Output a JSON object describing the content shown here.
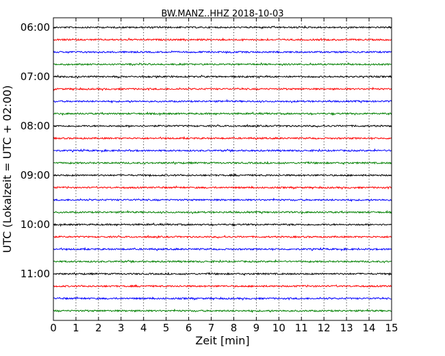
{
  "chart_data": {
    "type": "line",
    "title": "BW.MANZ..HHZ 2018-10-03",
    "xlabel": "Zeit  [min]",
    "ylabel": "UTC (Lokalzeit = UTC + 02:00)",
    "xlim": [
      0,
      15
    ],
    "x_ticks": [
      "0",
      "1",
      "2",
      "3",
      "4",
      "5",
      "6",
      "7",
      "8",
      "9",
      "10",
      "11",
      "12",
      "13",
      "14",
      "15"
    ],
    "y_ticks": [
      "06:00",
      "07:00",
      "08:00",
      "09:00",
      "10:00",
      "11:00"
    ],
    "grid": "vertical dotted at each minute",
    "trace_colors": [
      "#000000",
      "#ff0000",
      "#0000ff",
      "#008000"
    ],
    "traces": [
      {
        "start": "06:00",
        "color": "#000000"
      },
      {
        "start": "06:15",
        "color": "#ff0000"
      },
      {
        "start": "06:30",
        "color": "#0000ff"
      },
      {
        "start": "06:45",
        "color": "#008000"
      },
      {
        "start": "07:00",
        "color": "#000000"
      },
      {
        "start": "07:15",
        "color": "#ff0000"
      },
      {
        "start": "07:30",
        "color": "#0000ff"
      },
      {
        "start": "07:45",
        "color": "#008000"
      },
      {
        "start": "08:00",
        "color": "#000000"
      },
      {
        "start": "08:15",
        "color": "#ff0000"
      },
      {
        "start": "08:30",
        "color": "#0000ff"
      },
      {
        "start": "08:45",
        "color": "#008000"
      },
      {
        "start": "09:00",
        "color": "#000000"
      },
      {
        "start": "09:15",
        "color": "#ff0000"
      },
      {
        "start": "09:30",
        "color": "#0000ff"
      },
      {
        "start": "09:45",
        "color": "#008000"
      },
      {
        "start": "10:00",
        "color": "#000000"
      },
      {
        "start": "10:15",
        "color": "#ff0000"
      },
      {
        "start": "10:30",
        "color": "#0000ff"
      },
      {
        "start": "10:45",
        "color": "#008000"
      },
      {
        "start": "11:00",
        "color": "#000000"
      },
      {
        "start": "11:15",
        "color": "#ff0000"
      },
      {
        "start": "11:30",
        "color": "#0000ff"
      },
      {
        "start": "11:45",
        "color": "#008000"
      }
    ]
  }
}
